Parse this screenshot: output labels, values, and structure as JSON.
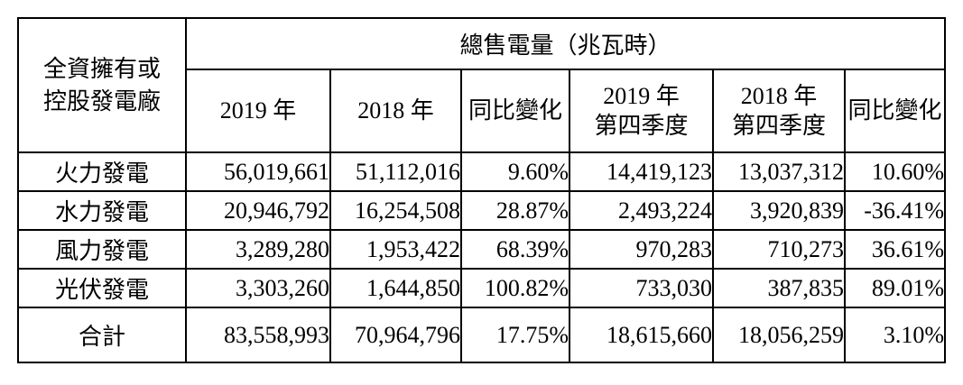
{
  "colors": {
    "text": "#000000",
    "border": "#000000",
    "background": "#ffffff"
  },
  "table": {
    "corner_header": {
      "line1": "全資擁有或",
      "line2": "控股發電廠"
    },
    "group_header": "總售電量（兆瓦時）",
    "columns": {
      "y2019": "2019 年",
      "y2018": "2018 年",
      "yoy": "同比變化",
      "q2019_line1": "2019 年",
      "q2019_line2": "第四季度",
      "q2018_line1": "2018 年",
      "q2018_line2": "第四季度",
      "q_yoy": "同比變化"
    },
    "rows": [
      {
        "name": "火力發電",
        "y2019": "56,019,661",
        "y2018": "51,112,016",
        "yoy": "9.60%",
        "q2019": "14,419,123",
        "q2018": "13,037,312",
        "q_yoy": "10.60%"
      },
      {
        "name": "水力發電",
        "y2019": "20,946,792",
        "y2018": "16,254,508",
        "yoy": "28.87%",
        "q2019": "2,493,224",
        "q2018": "3,920,839",
        "q_yoy": "-36.41%"
      },
      {
        "name": "風力發電",
        "y2019": "3,289,280",
        "y2018": "1,953,422",
        "yoy": "68.39%",
        "q2019": "970,283",
        "q2018": "710,273",
        "q_yoy": "36.61%"
      },
      {
        "name": "光伏發電",
        "y2019": "3,303,260",
        "y2018": "1,644,850",
        "yoy": "100.82%",
        "q2019": "733,030",
        "q2018": "387,835",
        "q_yoy": "89.01%"
      }
    ],
    "total": {
      "name": "合計",
      "y2019": "83,558,993",
      "y2018": "70,964,796",
      "yoy": "17.75%",
      "q2019": "18,615,660",
      "q2018": "18,056,259",
      "q_yoy": "3.10%"
    }
  }
}
